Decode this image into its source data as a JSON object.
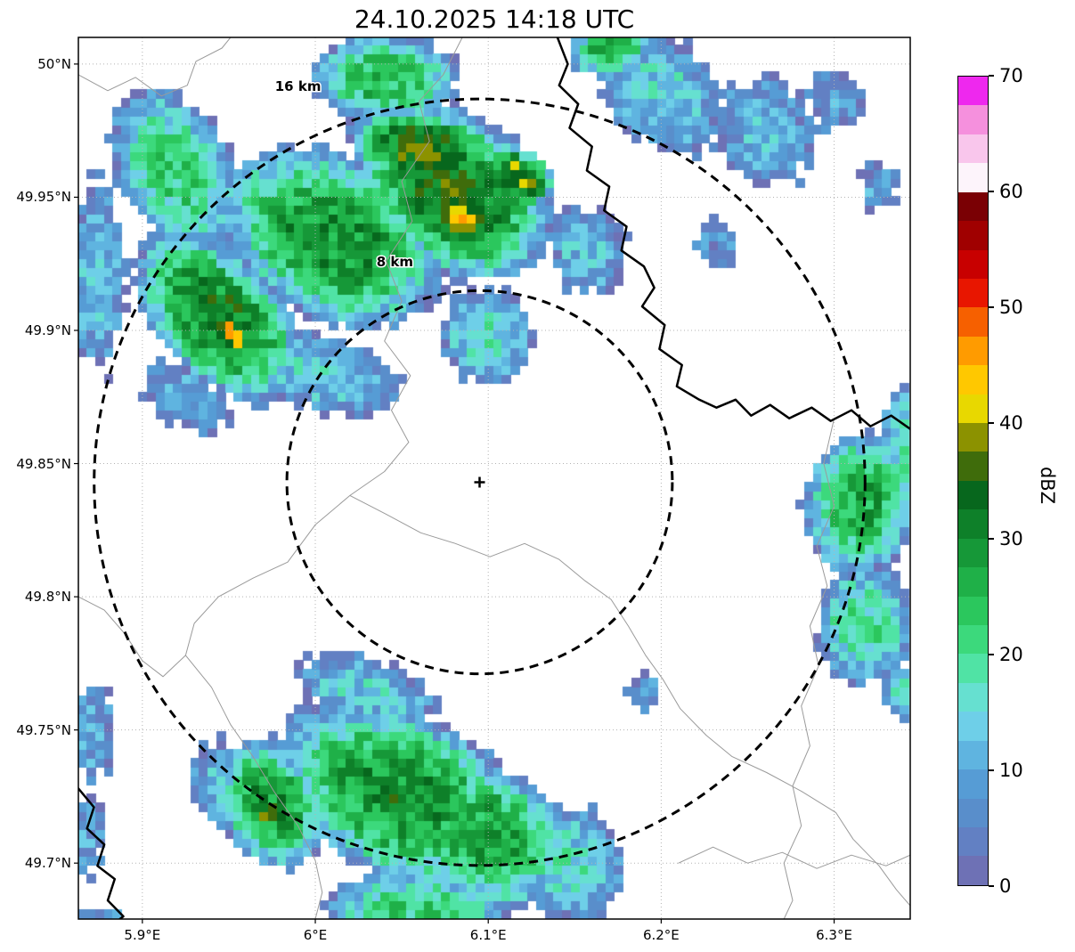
{
  "title": "24.10.2025 14:18 UTC",
  "axes": {
    "extent": {
      "lon_min": 5.863,
      "lon_max": 6.344,
      "lat_min": 49.679,
      "lat_max": 50.01
    },
    "x_ticks": [
      {
        "value": 5.9,
        "label": "5.9°E"
      },
      {
        "value": 6.0,
        "label": "6°E"
      },
      {
        "value": 6.1,
        "label": "6.1°E"
      },
      {
        "value": 6.2,
        "label": "6.2°E"
      },
      {
        "value": 6.3,
        "label": "6.3°E"
      }
    ],
    "y_ticks": [
      {
        "value": 50.0,
        "label": "50°N"
      },
      {
        "value": 49.95,
        "label": "49.95°N"
      },
      {
        "value": 49.9,
        "label": "49.9°N"
      },
      {
        "value": 49.85,
        "label": "49.85°N"
      },
      {
        "value": 49.8,
        "label": "49.8°N"
      },
      {
        "value": 49.75,
        "label": "49.75°N"
      },
      {
        "value": 49.7,
        "label": "49.7°N"
      }
    ]
  },
  "colorbar": {
    "label": "dBZ",
    "min": 0,
    "max": 70,
    "ticks": [
      0,
      10,
      20,
      30,
      40,
      50,
      60,
      70
    ],
    "segments": [
      {
        "from": 0.0,
        "to": 2.5,
        "color": "#6e71b5"
      },
      {
        "from": 2.5,
        "to": 5.0,
        "color": "#6280c3"
      },
      {
        "from": 5.0,
        "to": 7.5,
        "color": "#598ecb"
      },
      {
        "from": 7.5,
        "to": 10.0,
        "color": "#569cd5"
      },
      {
        "from": 10.0,
        "to": 12.5,
        "color": "#5fb4e0"
      },
      {
        "from": 12.5,
        "to": 15.0,
        "color": "#6ecfe8"
      },
      {
        "from": 15.0,
        "to": 17.5,
        "color": "#66e0d0"
      },
      {
        "from": 17.5,
        "to": 20.0,
        "color": "#50e3a5"
      },
      {
        "from": 20.0,
        "to": 22.5,
        "color": "#3cd97c"
      },
      {
        "from": 22.5,
        "to": 25.0,
        "color": "#2bc75d"
      },
      {
        "from": 25.0,
        "to": 27.5,
        "color": "#1fb048"
      },
      {
        "from": 27.5,
        "to": 30.0,
        "color": "#169838"
      },
      {
        "from": 30.0,
        "to": 32.5,
        "color": "#0e8029"
      },
      {
        "from": 32.5,
        "to": 35.0,
        "color": "#07671d"
      },
      {
        "from": 35.0,
        "to": 37.5,
        "color": "#3f6c0b"
      },
      {
        "from": 37.5,
        "to": 40.0,
        "color": "#8c9200"
      },
      {
        "from": 40.0,
        "to": 42.5,
        "color": "#e8d800"
      },
      {
        "from": 42.5,
        "to": 45.0,
        "color": "#ffc800"
      },
      {
        "from": 45.0,
        "to": 47.5,
        "color": "#ff9b00"
      },
      {
        "from": 47.5,
        "to": 50.0,
        "color": "#f66000"
      },
      {
        "from": 50.0,
        "to": 52.5,
        "color": "#e81600"
      },
      {
        "from": 52.5,
        "to": 55.0,
        "color": "#c80000"
      },
      {
        "from": 55.0,
        "to": 57.5,
        "color": "#a00000"
      },
      {
        "from": 57.5,
        "to": 60.0,
        "color": "#7a0004"
      },
      {
        "from": 60.0,
        "to": 62.5,
        "color": "#fdf4fb"
      },
      {
        "from": 62.5,
        "to": 65.0,
        "color": "#f9c6ec"
      },
      {
        "from": 65.0,
        "to": 67.5,
        "color": "#f590dd"
      },
      {
        "from": 67.5,
        "to": 70.0,
        "color": "#ee28ee"
      }
    ]
  },
  "range_rings": {
    "center": {
      "lon": 6.095,
      "lat": 49.843
    },
    "rings": [
      {
        "radius_km": 8,
        "label": "8 km",
        "label_lon": 6.046,
        "label_lat": 49.924
      },
      {
        "radius_km": 16,
        "label": "16 km",
        "label_lon": 5.99,
        "label_lat": 49.99
      }
    ]
  },
  "chart_data": {
    "type": "heatmap",
    "units": "dBZ",
    "title": "24.10.2025 14:18 UTC",
    "xlabel_ticks": [
      "5.9°E",
      "6°E",
      "6.1°E",
      "6.2°E",
      "6.3°E"
    ],
    "ylabel_ticks": [
      "50°N",
      "49.95°N",
      "49.9°N",
      "49.85°N",
      "49.8°N",
      "49.75°N",
      "49.7°N"
    ],
    "value_range": [
      0,
      70
    ],
    "grid": {
      "cell_lon": 0.005,
      "cell_lat": 0.00335
    },
    "noise_dbz": 11,
    "storm_cells": [
      {
        "lon": 5.945,
        "lat": 49.905,
        "rx": 0.055,
        "ry": 0.028,
        "rot": -25,
        "dbz": 32
      },
      {
        "lon": 5.952,
        "lat": 49.899,
        "rx": 0.013,
        "ry": 0.008,
        "rot": -25,
        "dbz": 46
      },
      {
        "lon": 6.01,
        "lat": 49.935,
        "rx": 0.07,
        "ry": 0.034,
        "rot": -12,
        "dbz": 30
      },
      {
        "lon": 6.08,
        "lat": 49.952,
        "rx": 0.062,
        "ry": 0.033,
        "rot": -15,
        "dbz": 33
      },
      {
        "lon": 6.085,
        "lat": 49.942,
        "rx": 0.016,
        "ry": 0.01,
        "rot": -20,
        "dbz": 43
      },
      {
        "lon": 6.118,
        "lat": 49.958,
        "rx": 0.022,
        "ry": 0.011,
        "rot": -15,
        "dbz": 38
      },
      {
        "lon": 6.065,
        "lat": 49.967,
        "rx": 0.048,
        "ry": 0.018,
        "rot": -8,
        "dbz": 36
      },
      {
        "lon": 6.04,
        "lat": 49.995,
        "rx": 0.045,
        "ry": 0.018,
        "rot": 0,
        "dbz": 25
      },
      {
        "lon": 5.92,
        "lat": 49.96,
        "rx": 0.045,
        "ry": 0.028,
        "rot": -30,
        "dbz": 22
      },
      {
        "lon": 5.874,
        "lat": 49.92,
        "rx": 0.018,
        "ry": 0.042,
        "rot": 0,
        "dbz": 12
      },
      {
        "lon": 6.0,
        "lat": 49.885,
        "rx": 0.055,
        "ry": 0.016,
        "rot": -10,
        "dbz": 14
      },
      {
        "lon": 5.925,
        "lat": 49.875,
        "rx": 0.03,
        "ry": 0.014,
        "rot": -20,
        "dbz": 10
      },
      {
        "lon": 6.1,
        "lat": 49.898,
        "rx": 0.03,
        "ry": 0.02,
        "rot": 0,
        "dbz": 16
      },
      {
        "lon": 6.158,
        "lat": 49.93,
        "rx": 0.024,
        "ry": 0.018,
        "rot": 0,
        "dbz": 13
      },
      {
        "lon": 6.2,
        "lat": 49.99,
        "rx": 0.04,
        "ry": 0.024,
        "rot": -20,
        "dbz": 14
      },
      {
        "lon": 6.17,
        "lat": 50.005,
        "rx": 0.025,
        "ry": 0.011,
        "rot": 0,
        "dbz": 26
      },
      {
        "lon": 6.26,
        "lat": 49.975,
        "rx": 0.034,
        "ry": 0.022,
        "rot": -10,
        "dbz": 12
      },
      {
        "lon": 6.3,
        "lat": 49.987,
        "rx": 0.02,
        "ry": 0.014,
        "rot": 0,
        "dbz": 9
      },
      {
        "lon": 6.325,
        "lat": 49.955,
        "rx": 0.013,
        "ry": 0.011,
        "rot": 0,
        "dbz": 9
      },
      {
        "lon": 6.232,
        "lat": 49.934,
        "rx": 0.016,
        "ry": 0.011,
        "rot": 0,
        "dbz": 8
      },
      {
        "lon": 6.315,
        "lat": 49.835,
        "rx": 0.035,
        "ry": 0.028,
        "rot": 10,
        "dbz": 27
      },
      {
        "lon": 6.318,
        "lat": 49.79,
        "rx": 0.03,
        "ry": 0.024,
        "rot": 0,
        "dbz": 20
      },
      {
        "lon": 6.344,
        "lat": 49.856,
        "rx": 0.018,
        "ry": 0.028,
        "rot": 0,
        "dbz": 18
      },
      {
        "lon": 6.34,
        "lat": 49.765,
        "rx": 0.014,
        "ry": 0.011,
        "rot": 0,
        "dbz": 16
      },
      {
        "lon": 6.05,
        "lat": 49.725,
        "rx": 0.08,
        "ry": 0.034,
        "rot": -12,
        "dbz": 30
      },
      {
        "lon": 6.1,
        "lat": 49.71,
        "rx": 0.05,
        "ry": 0.028,
        "rot": -10,
        "dbz": 28
      },
      {
        "lon": 5.975,
        "lat": 49.722,
        "rx": 0.034,
        "ry": 0.024,
        "rot": -20,
        "dbz": 30
      },
      {
        "lon": 5.972,
        "lat": 49.718,
        "rx": 0.007,
        "ry": 0.005,
        "rot": 0,
        "dbz": 42
      },
      {
        "lon": 6.03,
        "lat": 49.764,
        "rx": 0.045,
        "ry": 0.014,
        "rot": -10,
        "dbz": 14
      },
      {
        "lon": 6.148,
        "lat": 49.7,
        "rx": 0.034,
        "ry": 0.024,
        "rot": 0,
        "dbz": 16
      },
      {
        "lon": 6.058,
        "lat": 49.683,
        "rx": 0.058,
        "ry": 0.014,
        "rot": 0,
        "dbz": 22
      },
      {
        "lon": 5.945,
        "lat": 49.73,
        "rx": 0.02,
        "ry": 0.018,
        "rot": 0,
        "dbz": 12
      },
      {
        "lon": 5.87,
        "lat": 49.75,
        "rx": 0.016,
        "ry": 0.022,
        "rot": 0,
        "dbz": 10
      },
      {
        "lon": 5.867,
        "lat": 49.71,
        "rx": 0.012,
        "ry": 0.017,
        "rot": 0,
        "dbz": 9
      },
      {
        "lon": 5.88,
        "lat": 49.672,
        "rx": 0.024,
        "ry": 0.012,
        "rot": 0,
        "dbz": 12
      },
      {
        "lon": 6.19,
        "lat": 49.764,
        "rx": 0.011,
        "ry": 0.008,
        "rot": 0,
        "dbz": 9
      }
    ]
  },
  "map_lines": {
    "country_borders": [
      [
        [
          6.14,
          50.01
        ],
        [
          6.146,
          50.0
        ],
        [
          6.141,
          49.992
        ],
        [
          6.152,
          49.985
        ],
        [
          6.147,
          49.976
        ],
        [
          6.16,
          49.969
        ],
        [
          6.157,
          49.96
        ],
        [
          6.17,
          49.954
        ],
        [
          6.167,
          49.945
        ],
        [
          6.18,
          49.939
        ],
        [
          6.177,
          49.93
        ],
        [
          6.19,
          49.924
        ],
        [
          6.196,
          49.916
        ],
        [
          6.189,
          49.909
        ],
        [
          6.202,
          49.902
        ],
        [
          6.199,
          49.893
        ],
        [
          6.212,
          49.887
        ],
        [
          6.209,
          49.879
        ],
        [
          6.222,
          49.874
        ],
        [
          6.232,
          49.871
        ],
        [
          6.243,
          49.874
        ],
        [
          6.252,
          49.868
        ],
        [
          6.263,
          49.872
        ],
        [
          6.274,
          49.867
        ],
        [
          6.287,
          49.871
        ],
        [
          6.298,
          49.866
        ],
        [
          6.31,
          49.87
        ],
        [
          6.321,
          49.864
        ],
        [
          6.333,
          49.868
        ],
        [
          6.344,
          49.863
        ]
      ],
      [
        [
          5.863,
          49.728
        ],
        [
          5.872,
          49.721
        ],
        [
          5.868,
          49.713
        ],
        [
          5.878,
          49.707
        ],
        [
          5.874,
          49.699
        ],
        [
          5.884,
          49.694
        ],
        [
          5.88,
          49.686
        ],
        [
          5.889,
          49.68
        ],
        [
          5.887,
          49.679
        ]
      ]
    ],
    "minor_lines": [
      [
        [
          6.085,
          50.01
        ],
        [
          6.074,
          49.996
        ],
        [
          6.06,
          49.986
        ],
        [
          6.066,
          49.971
        ],
        [
          6.05,
          49.956
        ],
        [
          6.056,
          49.941
        ],
        [
          6.041,
          49.926
        ],
        [
          6.05,
          49.911
        ],
        [
          6.04,
          49.896
        ],
        [
          6.055,
          49.883
        ],
        [
          6.044,
          49.87
        ],
        [
          6.054,
          49.858
        ],
        [
          6.04,
          49.847
        ],
        [
          6.02,
          49.838
        ],
        [
          6.0,
          49.827
        ],
        [
          5.984,
          49.813
        ],
        [
          5.964,
          49.807
        ],
        [
          5.944,
          49.8
        ],
        [
          5.93,
          49.79
        ],
        [
          5.925,
          49.778
        ],
        [
          5.94,
          49.766
        ],
        [
          5.951,
          49.752
        ],
        [
          5.964,
          49.74
        ],
        [
          5.976,
          49.727
        ],
        [
          5.99,
          49.714
        ],
        [
          6.0,
          49.701
        ],
        [
          6.004,
          49.689
        ],
        [
          6.0,
          49.679
        ]
      ],
      [
        [
          6.02,
          49.838
        ],
        [
          6.041,
          49.831
        ],
        [
          6.061,
          49.824
        ],
        [
          6.081,
          49.82
        ],
        [
          6.101,
          49.815
        ],
        [
          6.121,
          49.82
        ],
        [
          6.141,
          49.814
        ],
        [
          6.156,
          49.806
        ],
        [
          6.171,
          49.799
        ],
        [
          6.181,
          49.789
        ],
        [
          6.191,
          49.778
        ],
        [
          6.201,
          49.769
        ],
        [
          6.211,
          49.758
        ],
        [
          6.226,
          49.748
        ],
        [
          6.241,
          49.74
        ],
        [
          6.261,
          49.734
        ],
        [
          6.281,
          49.727
        ],
        [
          6.301,
          49.719
        ],
        [
          6.311,
          49.709
        ],
        [
          6.326,
          49.699
        ],
        [
          6.336,
          49.69
        ],
        [
          6.344,
          49.684
        ]
      ],
      [
        [
          6.3,
          49.867
        ],
        [
          6.294,
          49.85
        ],
        [
          6.3,
          49.834
        ],
        [
          6.29,
          49.819
        ],
        [
          6.296,
          49.804
        ],
        [
          6.286,
          49.789
        ],
        [
          6.291,
          49.774
        ],
        [
          6.281,
          49.759
        ],
        [
          6.286,
          49.744
        ],
        [
          6.276,
          49.729
        ],
        [
          6.281,
          49.714
        ],
        [
          6.271,
          49.7
        ],
        [
          6.276,
          49.686
        ],
        [
          6.271,
          49.679
        ]
      ],
      [
        [
          6.21,
          49.7
        ],
        [
          6.23,
          49.706
        ],
        [
          6.25,
          49.7
        ],
        [
          6.27,
          49.704
        ],
        [
          6.29,
          49.698
        ],
        [
          6.31,
          49.703
        ],
        [
          6.33,
          49.699
        ],
        [
          6.344,
          49.703
        ]
      ],
      [
        [
          5.863,
          49.996
        ],
        [
          5.88,
          49.99
        ],
        [
          5.896,
          49.995
        ],
        [
          5.911,
          49.988
        ],
        [
          5.926,
          49.992
        ],
        [
          5.931,
          50.001
        ],
        [
          5.946,
          50.006
        ],
        [
          5.951,
          50.01
        ]
      ],
      [
        [
          5.863,
          49.8
        ],
        [
          5.878,
          49.795
        ],
        [
          5.89,
          49.786
        ],
        [
          5.9,
          49.776
        ],
        [
          5.912,
          49.77
        ],
        [
          5.925,
          49.778
        ]
      ]
    ]
  }
}
